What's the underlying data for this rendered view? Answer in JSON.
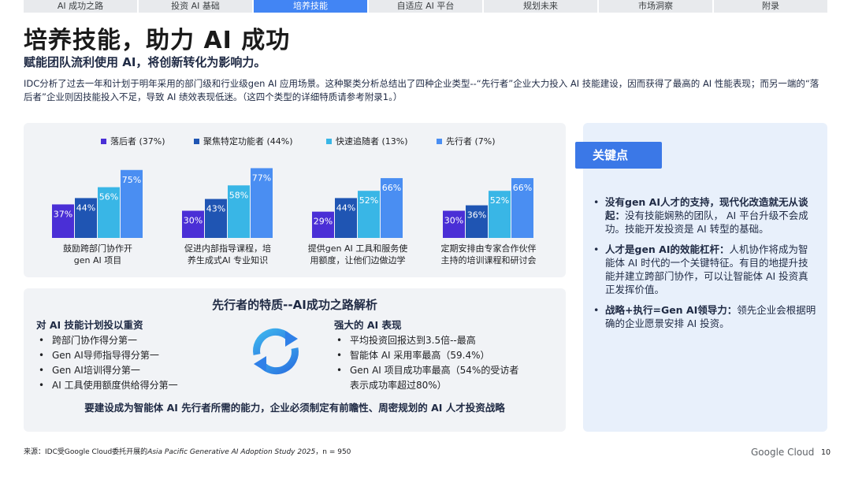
{
  "tabs": [
    "AI 成功之路",
    "投资 AI 基础",
    "培养技能",
    "自适应 AI 平台",
    "规划未来",
    "市场洞察",
    "附录"
  ],
  "active_tab": 2,
  "title": "培养技能，助力 AI 成功",
  "subtitle": "赋能团队流利使用 AI，将创新转化为影响力。",
  "description": "IDC分析了过去一年和计划于明年采用的部门级和行业级gen AI 应用场景。这种聚类分析总结出了四种企业类型--“先行者”企业大力投入 AI 技能建设，因而获得了最高的 AI 性能表现；而另一端的“落后者”企业则因技能投入不足，导致 AI 绩效表现低迷。（这四个类型的详细特质请参考附录1。）",
  "chart_data": {
    "type": "bar",
    "categories": [
      "鼓励跨部门协作开\ngen AI 项目",
      "促进内部指导课程，培\n养生成式AI 专业知识",
      "提供gen AI 工具和服务使\n用额度，让他们边做边学",
      "定期安排由专家合作伙伴\n主持的培训课程和研讨会"
    ],
    "series": [
      {
        "name": "落后者 (37%)",
        "values": [
          37,
          30,
          29,
          30
        ]
      },
      {
        "name": "聚焦特定功能者 (44%)",
        "values": [
          44,
          43,
          44,
          36
        ]
      },
      {
        "name": "快速追随者 (13%)",
        "values": [
          56,
          58,
          52,
          52
        ]
      },
      {
        "name": "先行者 (7%)",
        "values": [
          75,
          77,
          66,
          66
        ]
      }
    ],
    "value_suffix": "%",
    "colors": [
      "#4a2fd6",
      "#1f55b3",
      "#39b6e6",
      "#4a8ef2"
    ],
    "ylim": [
      0,
      100
    ]
  },
  "leaders": {
    "title": "先行者的特质--AI成功之路解析",
    "left_heading": "对 AI 技能计划投以重资",
    "left_items": [
      "跨部门协作得分第一",
      "Gen AI导师指导得分第一",
      "Gen AI培训得分第一",
      "AI 工具使用额度供给得分第一"
    ],
    "right_heading": "强大的 AI 表现",
    "right_items": [
      "平均投资回报达到3.5倍--最高",
      "智能体 AI 采用率最高（59.4%）",
      "Gen AI 项目成功率最高（54%的受访者表示成功率超过80%）"
    ],
    "conclusion": "要建设成为智能体 AI 先行者所需的能力，企业必须制定有前瞻性、周密规划的 AI 人才投资战略",
    "cycle_icon": "refresh-cycle-icon"
  },
  "key_points": {
    "heading": "关键点",
    "items": [
      {
        "bold": "没有gen AI人才的支持，现代化改造就无从谈起：",
        "text": "没有技能娴熟的团队， AI 平台升级不会成功。技能开发投资是 AI 转型的基础。"
      },
      {
        "bold": "人才是gen AI的效能杠杆：",
        "text": "人机协作将成为智能体 AI 时代的一个关键特征。有目的地提升技能并建立跨部门协作，可以让智能体 AI 投资真正发挥价值。"
      },
      {
        "bold": "战略+执行=Gen AI领导力：",
        "text": "领先企业会根据明确的企业愿景安排 AI 投资。"
      }
    ]
  },
  "footer": {
    "prefix": "来源：IDC受Google Cloud委托开展的",
    "study": "Asia Pacific Generative AI Adoption Study 2025",
    "suffix": "，n = 950"
  },
  "brand": "Google Cloud",
  "page_number": "10"
}
